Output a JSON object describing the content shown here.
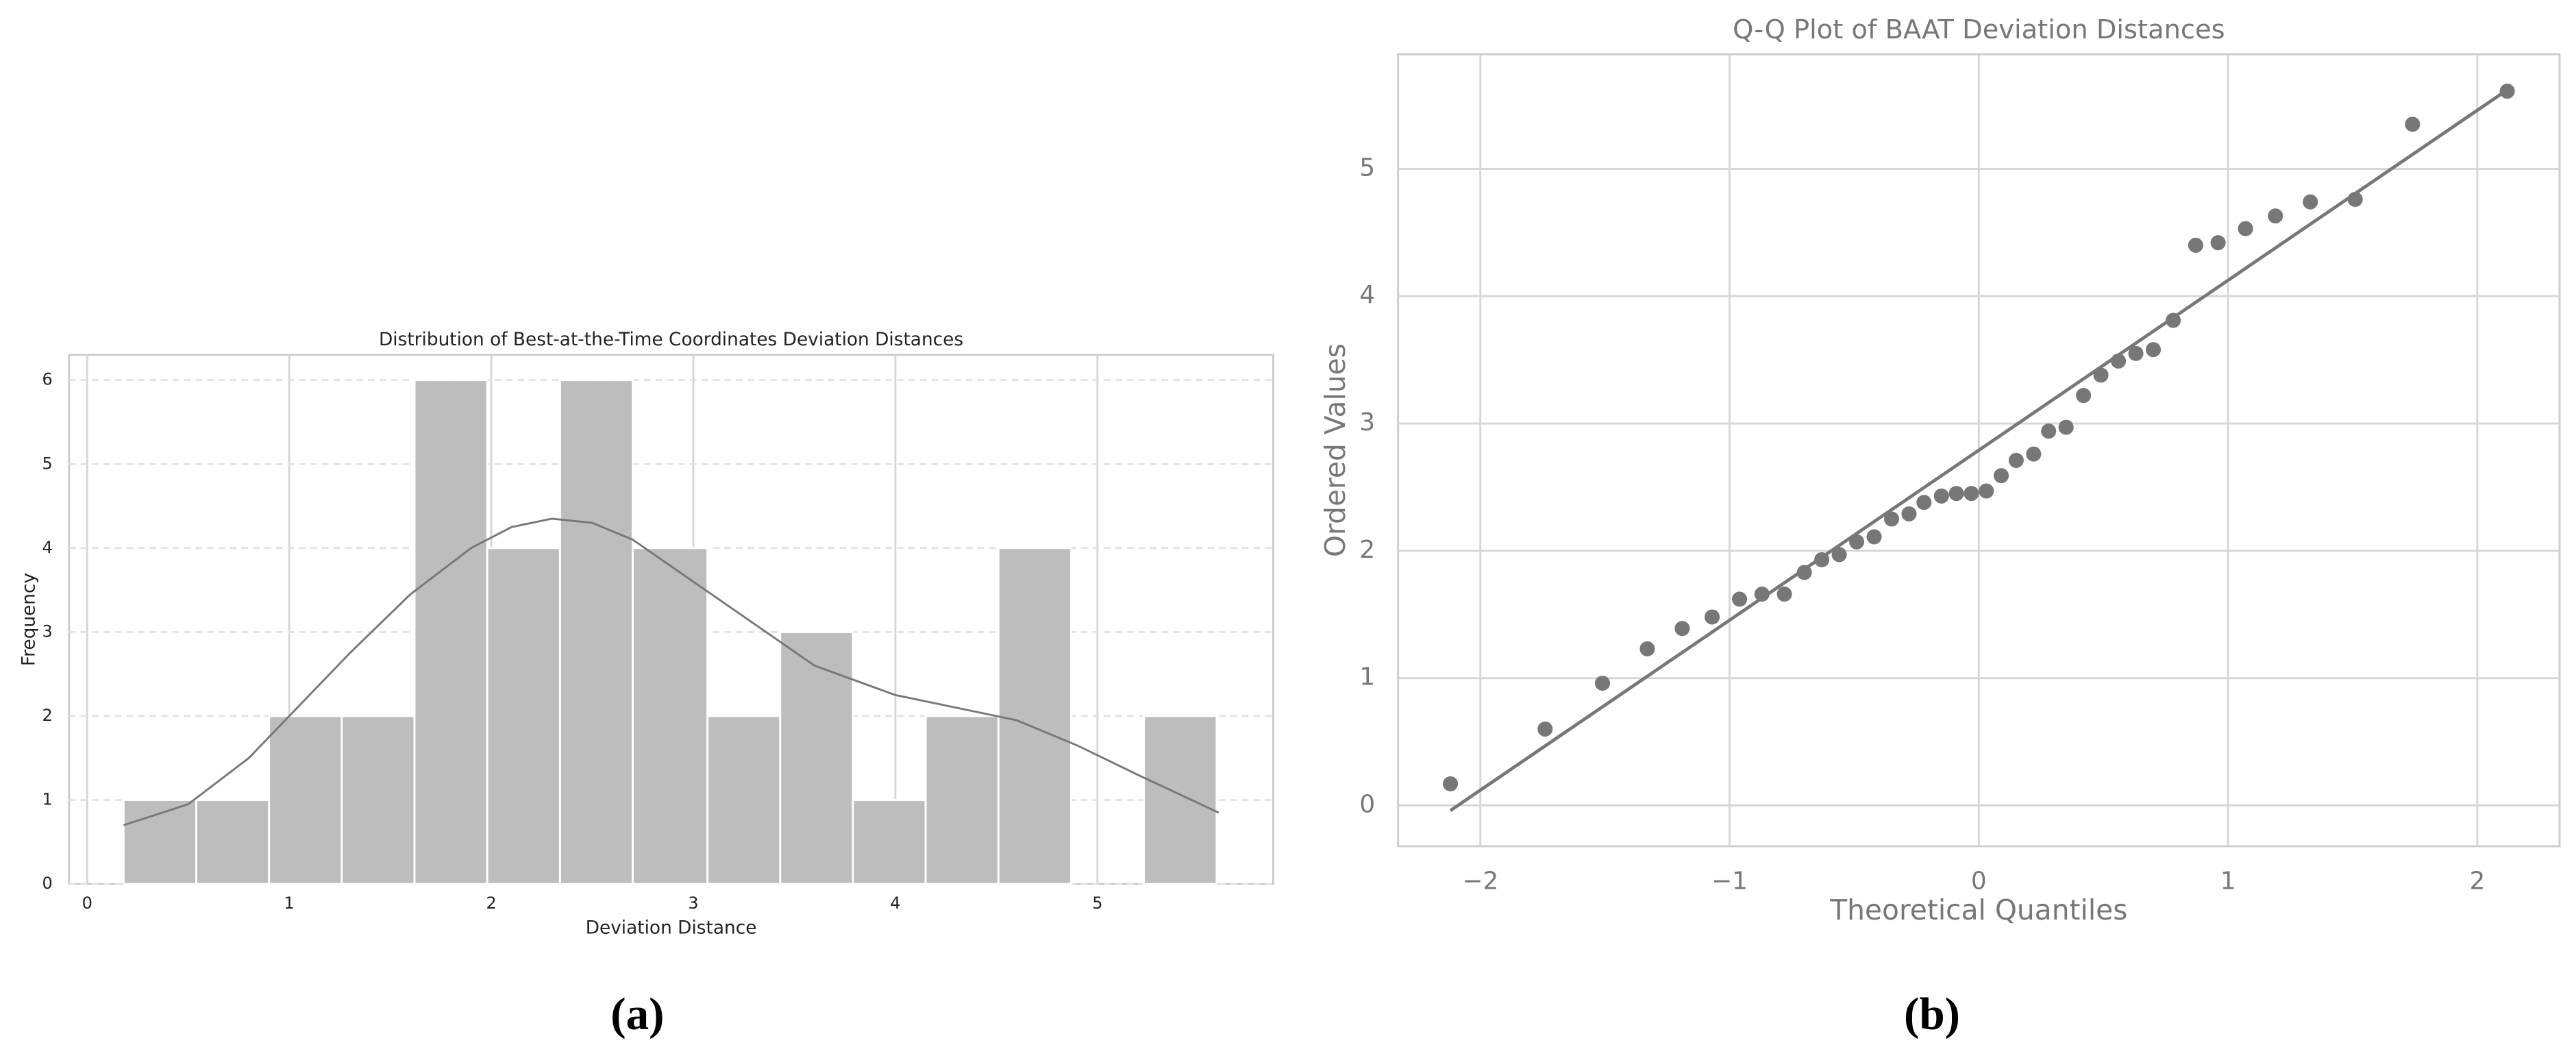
{
  "chart_data": [
    {
      "type": "histogram",
      "title": "Distribution of Best-at-the-Time Coordinates Deviation Distances",
      "xlabel": "Deviation Distance",
      "ylabel": "Frequency",
      "caption": "(a)",
      "bins": [
        0.18,
        0.54,
        0.9,
        1.26,
        1.62,
        1.98,
        2.34,
        2.7,
        3.07,
        3.43,
        3.79,
        4.15,
        4.51,
        4.87,
        5.23,
        5.59
      ],
      "values": [
        1,
        1,
        2,
        2,
        6,
        4,
        6,
        4,
        2,
        3,
        1,
        2,
        4,
        0,
        2
      ],
      "color": "#bdbdbd",
      "line_color": "#777777",
      "kde": {
        "x": [
          0.18,
          0.5,
          0.8,
          1.0,
          1.3,
          1.6,
          1.9,
          2.1,
          2.3,
          2.5,
          2.7,
          3.0,
          3.3,
          3.6,
          4.0,
          4.3,
          4.6,
          4.9,
          5.2,
          5.6
        ],
        "values": [
          0.7,
          0.95,
          1.5,
          2.0,
          2.75,
          3.45,
          4.0,
          4.25,
          4.35,
          4.3,
          4.1,
          3.6,
          3.1,
          2.6,
          2.25,
          2.1,
          1.95,
          1.65,
          1.3,
          0.85
        ]
      },
      "xlim": [
        -0.09,
        5.87
      ],
      "ylim": [
        0,
        6.3
      ],
      "xticks": [
        0,
        1,
        2,
        3,
        4,
        5
      ],
      "yticks": [
        0,
        1,
        2,
        3,
        4,
        5,
        6
      ],
      "grid": true,
      "ygrid_style": "dashed"
    },
    {
      "type": "scatter",
      "title": "Q-Q Plot of BAAT Deviation Distances",
      "xlabel": "Theoretical Quantiles",
      "ylabel": "Ordered Values",
      "caption": "(b)",
      "x": [
        -2.12,
        -1.74,
        -1.51,
        -1.33,
        -1.19,
        -1.07,
        -0.96,
        -0.87,
        -0.78,
        -0.7,
        -0.63,
        -0.56,
        -0.49,
        -0.42,
        -0.35,
        -0.28,
        -0.22,
        -0.15,
        -0.09,
        -0.03,
        0.03,
        0.09,
        0.15,
        0.22,
        0.28,
        0.35,
        0.42,
        0.49,
        0.56,
        0.63,
        0.7,
        0.78,
        0.87,
        0.96,
        1.07,
        1.19,
        1.33,
        1.51,
        1.74,
        2.12
      ],
      "values": [
        0.17,
        0.6,
        0.96,
        1.23,
        1.39,
        1.48,
        1.62,
        1.66,
        1.66,
        1.83,
        1.93,
        1.97,
        2.07,
        2.11,
        2.25,
        2.29,
        2.38,
        2.43,
        2.45,
        2.45,
        2.47,
        2.59,
        2.71,
        2.76,
        2.94,
        2.97,
        3.22,
        3.38,
        3.49,
        3.55,
        3.58,
        3.81,
        4.4,
        4.42,
        4.53,
        4.63,
        4.74,
        4.76,
        5.35,
        5.61
      ],
      "color": "#777777",
      "line_color": "#777777",
      "fit_line": {
        "x": [
          -2.12,
          2.12
        ],
        "values": [
          -0.04,
          5.62
        ]
      },
      "xlim": [
        -2.33,
        2.33
      ],
      "ylim": [
        -0.32,
        5.9
      ],
      "xticks": [
        {
          "value": -2,
          "label": "−2"
        },
        {
          "value": -1,
          "label": "−1"
        },
        0,
        1,
        2
      ],
      "yticks": [
        0,
        1,
        2,
        3,
        4,
        5
      ],
      "grid": true,
      "ygrid_style": "solid"
    }
  ]
}
